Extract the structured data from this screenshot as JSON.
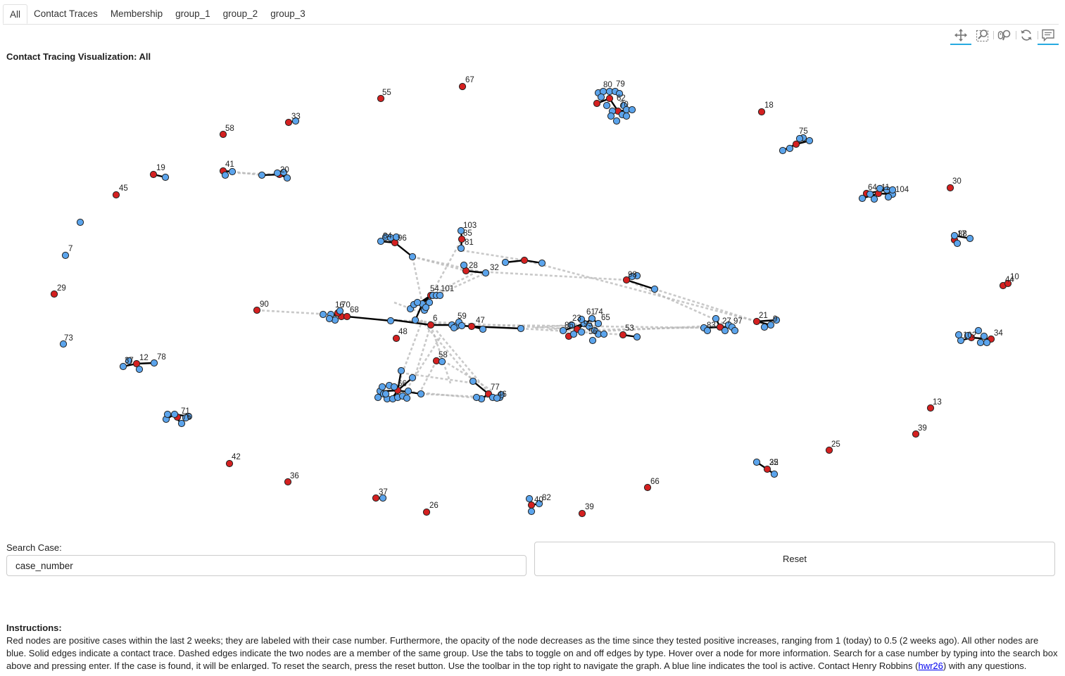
{
  "tabs": [
    {
      "label": "All",
      "active": true
    },
    {
      "label": "Contact Traces",
      "active": false
    },
    {
      "label": "Membership",
      "active": false
    },
    {
      "label": "group_1",
      "active": false
    },
    {
      "label": "group_2",
      "active": false
    },
    {
      "label": "group_3",
      "active": false
    }
  ],
  "toolbar": {
    "tools": [
      {
        "icon": "pan-icon",
        "active": true
      },
      {
        "icon": "box-zoom-icon",
        "active": false
      },
      {
        "icon": "wheel-zoom-icon",
        "active": false
      },
      {
        "icon": "reset-view-icon",
        "active": false
      },
      {
        "icon": "hover-icon",
        "active": true
      }
    ],
    "active_color": "#26aae1"
  },
  "viz_title": "Contact Tracing Visualization: All",
  "colors": {
    "positive": "#d42020",
    "other": "#5ba4ec",
    "edge": "#000000",
    "group_edge": "#b8b8b8"
  },
  "search": {
    "label": "Search Case:",
    "value": "case_number"
  },
  "reset_label": "Reset",
  "instructions": {
    "heading": "Instructions:",
    "text_before_link": "Red nodes are positive cases within the last 2 weeks; they are labeled with their case number. Furthermore, the opacity of the node decreases as the time since they tested positive increases, ranging from 1 (today) to 0.5 (2 weeks ago). All other nodes are blue. Solid edges indicate a contact trace. Dashed edges indicate the two nodes are a member of the same group. Use the tabs to toggle on and off edges by type. Hover over a node for more information. Search for a case number by typing into the search box above and pressing enter. If the case is found, it will be enlarged. To reset the search, press the reset button. Use the toolbar in the top right to navigate the graph. A blue line indicates the tool is active. Contact Henry Robbins (",
    "link_text": "hwr26",
    "text_after_link": ") with any questions."
  },
  "labels": [
    "67",
    "55",
    "80",
    "79",
    "62",
    "70",
    "18",
    "33",
    "58",
    "75",
    "19",
    "41",
    "20",
    "45",
    "64",
    "11",
    "104",
    "30",
    "103",
    "85",
    "81",
    "84",
    "96",
    "88",
    "17",
    "7",
    "28",
    "32",
    "98",
    "29",
    "44",
    "10",
    "54",
    "101",
    "90",
    "16",
    "70",
    "68",
    "59",
    "6",
    "47",
    "61",
    "74",
    "65",
    "86",
    "23",
    "95",
    "56",
    "53",
    "83",
    "27",
    "97",
    "21",
    "9",
    "48",
    "73",
    "58",
    "102",
    "34",
    "37",
    "12",
    "78",
    "22",
    "77",
    "66",
    "46",
    "71",
    "76",
    "13",
    "39",
    "25",
    "42",
    "35",
    "36",
    "66",
    "37",
    "40",
    "26",
    "39",
    "82",
    "57",
    "50"
  ]
}
